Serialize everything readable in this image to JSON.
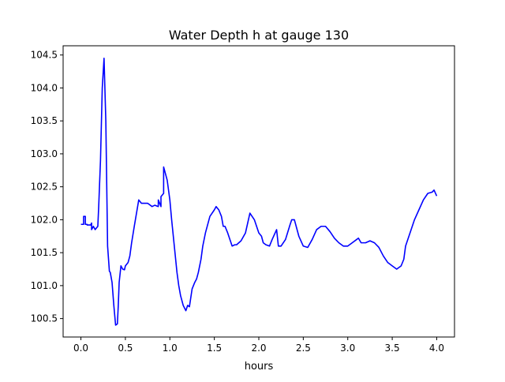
{
  "chart_data": {
    "type": "line",
    "title": "Water Depth h at gauge 130",
    "xlabel": "hours",
    "ylabel": "",
    "xlim": [
      -0.2,
      4.2
    ],
    "ylim": [
      100.22,
      104.64
    ],
    "xticks": [
      0.0,
      0.5,
      1.0,
      1.5,
      2.0,
      2.5,
      3.0,
      3.5,
      4.0
    ],
    "xtick_labels": [
      "0.0",
      "0.5",
      "1.0",
      "1.5",
      "2.0",
      "2.5",
      "3.0",
      "3.5",
      "4.0"
    ],
    "yticks": [
      100.5,
      101.0,
      101.5,
      102.0,
      102.5,
      103.0,
      103.5,
      104.0,
      104.5
    ],
    "ytick_labels": [
      "100.5",
      "101.0",
      "101.5",
      "102.0",
      "102.5",
      "103.0",
      "103.5",
      "104.0",
      "104.5"
    ],
    "grid": false,
    "series": [
      {
        "color": "#0000ff",
        "x": [
          0.0,
          0.03,
          0.03,
          0.05,
          0.05,
          0.07,
          0.07,
          0.11,
          0.12,
          0.12,
          0.14,
          0.16,
          0.19,
          0.2,
          0.22,
          0.24,
          0.26,
          0.28,
          0.3,
          0.32,
          0.33,
          0.35,
          0.37,
          0.39,
          0.41,
          0.42,
          0.43,
          0.45,
          0.47,
          0.49,
          0.5,
          0.53,
          0.55,
          0.57,
          0.6,
          0.65,
          0.68,
          0.7,
          0.75,
          0.8,
          0.83,
          0.87,
          0.87,
          0.9,
          0.9,
          0.93,
          0.93,
          0.95,
          0.97,
          1.0,
          1.02,
          1.05,
          1.08,
          1.1,
          1.12,
          1.15,
          1.18,
          1.2,
          1.22,
          1.25,
          1.28,
          1.3,
          1.32,
          1.35,
          1.37,
          1.4,
          1.45,
          1.5,
          1.52,
          1.55,
          1.58,
          1.6,
          1.62,
          1.65,
          1.68,
          1.7,
          1.73,
          1.75,
          1.8,
          1.85,
          1.9,
          1.95,
          2.0,
          2.03,
          2.05,
          2.08,
          2.12,
          2.15,
          2.2,
          2.22,
          2.25,
          2.3,
          2.35,
          2.37,
          2.4,
          2.45,
          2.5,
          2.55,
          2.6,
          2.65,
          2.7,
          2.73,
          2.75,
          2.8,
          2.85,
          2.9,
          2.95,
          3.0,
          3.05,
          3.1,
          3.12,
          3.15,
          3.2,
          3.25,
          3.3,
          3.35,
          3.4,
          3.45,
          3.5,
          3.55,
          3.6,
          3.63,
          3.65,
          3.7,
          3.75,
          3.8,
          3.85,
          3.9,
          3.95,
          3.97,
          4.0
        ],
        "y": [
          101.93,
          101.93,
          102.05,
          102.05,
          101.93,
          101.93,
          101.92,
          101.92,
          101.95,
          101.85,
          101.9,
          101.85,
          101.9,
          102.2,
          102.9,
          104.0,
          104.45,
          103.5,
          101.6,
          101.22,
          101.2,
          101.05,
          100.7,
          100.4,
          100.42,
          100.7,
          101.05,
          101.3,
          101.25,
          101.24,
          101.3,
          101.35,
          101.45,
          101.65,
          101.9,
          102.3,
          102.25,
          102.25,
          102.25,
          102.2,
          102.22,
          102.2,
          102.3,
          102.2,
          102.35,
          102.4,
          102.8,
          102.7,
          102.6,
          102.3,
          102.0,
          101.6,
          101.2,
          101.0,
          100.85,
          100.7,
          100.62,
          100.7,
          100.68,
          100.95,
          101.05,
          101.1,
          101.2,
          101.4,
          101.6,
          101.8,
          102.05,
          102.15,
          102.2,
          102.15,
          102.05,
          101.9,
          101.9,
          101.8,
          101.68,
          101.6,
          101.62,
          101.62,
          101.68,
          101.8,
          102.1,
          102.0,
          101.8,
          101.75,
          101.65,
          101.62,
          101.6,
          101.7,
          101.85,
          101.6,
          101.6,
          101.7,
          101.92,
          102.0,
          102.0,
          101.75,
          101.6,
          101.58,
          101.7,
          101.85,
          101.9,
          101.9,
          101.9,
          101.82,
          101.72,
          101.65,
          101.6,
          101.6,
          101.65,
          101.7,
          101.72,
          101.65,
          101.65,
          101.68,
          101.65,
          101.58,
          101.45,
          101.35,
          101.3,
          101.25,
          101.3,
          101.4,
          101.6,
          101.8,
          102.0,
          102.15,
          102.3,
          102.4,
          102.42,
          102.45,
          102.36
        ]
      }
    ]
  }
}
